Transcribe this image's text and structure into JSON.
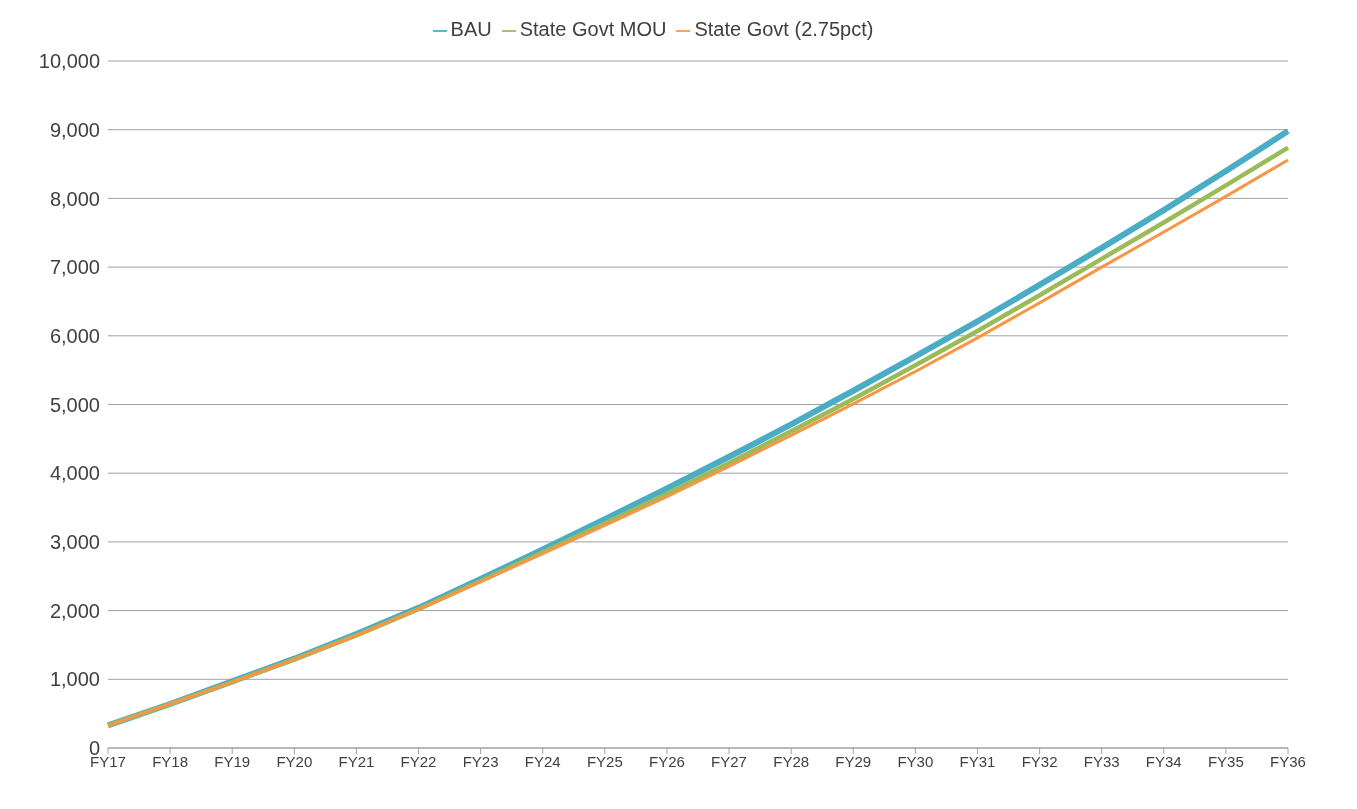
{
  "chart_data": {
    "type": "line",
    "categories": [
      "FY17",
      "FY18",
      "FY19",
      "FY20",
      "FY21",
      "FY22",
      "FY23",
      "FY24",
      "FY25",
      "FY26",
      "FY27",
      "FY28",
      "FY29",
      "FY30",
      "FY31",
      "FY32",
      "FY33",
      "FY34",
      "FY35",
      "FY36"
    ],
    "series": [
      {
        "name": "BAU",
        "color": "#4bacc6",
        "values": [
          330,
          640,
          970,
          1300,
          1660,
          2040,
          2460,
          2890,
          3330,
          3780,
          4240,
          4710,
          5200,
          5700,
          6210,
          6740,
          7280,
          7830,
          8400,
          8980
        ]
      },
      {
        "name": "State Govt MOU",
        "color": "#9bbb59",
        "values": [
          330,
          640,
          960,
          1290,
          1640,
          2020,
          2430,
          2850,
          3270,
          3700,
          4150,
          4610,
          5080,
          5570,
          6070,
          6590,
          7120,
          7650,
          8190,
          8740
        ]
      },
      {
        "name": "State Govt (2.75pct)",
        "color": "#f79646",
        "values": [
          330,
          640,
          960,
          1290,
          1640,
          2020,
          2420,
          2830,
          3240,
          3660,
          4100,
          4550,
          5010,
          5480,
          5970,
          6480,
          7000,
          7510,
          8030,
          8560
        ]
      }
    ],
    "ylim": [
      0,
      10000
    ],
    "yticks": [
      0,
      {
        "value": 1000,
        "label": "1,000"
      },
      {
        "value": 2000,
        "label": "2,000"
      },
      {
        "value": 3000,
        "label": "3,000"
      },
      {
        "value": 4000,
        "label": "4,000"
      },
      {
        "value": 5000,
        "label": "5,000"
      },
      {
        "value": 6000,
        "label": "6,000"
      },
      {
        "value": 7000,
        "label": "7,000"
      },
      {
        "value": 8000,
        "label": "8,000"
      },
      {
        "value": 9000,
        "label": "9,000"
      },
      {
        "value": 10000,
        "label": "10,000"
      }
    ],
    "grid": "y",
    "legend": "top",
    "marker": "none",
    "line_style": "solid"
  }
}
